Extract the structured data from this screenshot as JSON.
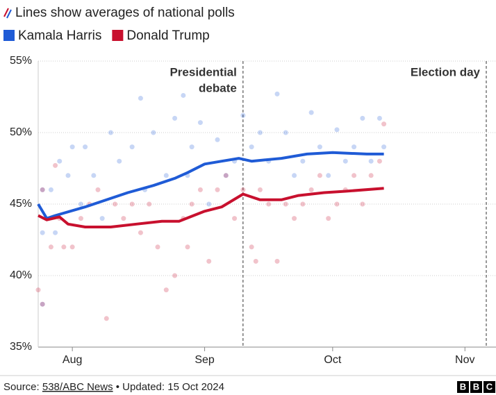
{
  "chart_data": {
    "type": "line",
    "title": "Lines show averages of national polls",
    "xlim": [
      23,
      128
    ],
    "xticks": [
      {
        "value": 31,
        "label": "Aug"
      },
      {
        "value": 62,
        "label": "Sep"
      },
      {
        "value": 92,
        "label": "Oct"
      },
      {
        "value": 123,
        "label": "Nov"
      }
    ],
    "ylim": [
      35,
      55
    ],
    "yticks": [
      {
        "value": 35,
        "label": "35%"
      },
      {
        "value": 40,
        "label": "40%"
      },
      {
        "value": 45,
        "label": "45%"
      },
      {
        "value": 50,
        "label": "50%"
      },
      {
        "value": 55,
        "label": "55%"
      }
    ],
    "grid": true,
    "events": [
      {
        "x": 71,
        "label": [
          "Presidential",
          "debate"
        ]
      },
      {
        "x": 128,
        "label": [
          "Election day"
        ]
      }
    ],
    "series": [
      {
        "name": "Kamala Harris",
        "color": "#1f5bd6",
        "x": [
          23,
          25,
          27,
          34,
          38,
          44,
          50,
          55,
          58,
          62,
          66,
          70,
          73,
          80,
          86,
          92,
          100,
          104
        ],
        "values": [
          45,
          44,
          44.2,
          44.8,
          45.2,
          45.8,
          46.3,
          46.8,
          47.2,
          47.8,
          48,
          48.2,
          48,
          48.2,
          48.5,
          48.6,
          48.5,
          48.5
        ],
        "polls_x": [
          24,
          24,
          24,
          26,
          27,
          28,
          30,
          31,
          33,
          34,
          36,
          38,
          40,
          42,
          45,
          47,
          48,
          50,
          53,
          55,
          57,
          58,
          59,
          61,
          63,
          65,
          67,
          69,
          71,
          73,
          75,
          77,
          79,
          81,
          83,
          85,
          87,
          89,
          91,
          93,
          95,
          97,
          99,
          101,
          103,
          104
        ],
        "polls": [
          46,
          43,
          38,
          46,
          43,
          48,
          47,
          49,
          45,
          49,
          47,
          44,
          50,
          48,
          49,
          52.4,
          46,
          50,
          47,
          51,
          52.6,
          47,
          49,
          50.7,
          45,
          49.5,
          47,
          48,
          51.2,
          49,
          50,
          48,
          52.7,
          50,
          47,
          48,
          51.4,
          49,
          47,
          50.2,
          48,
          49,
          51,
          48,
          51,
          49
        ]
      },
      {
        "name": "Donald Trump",
        "color": "#c8102e",
        "x": [
          23,
          25,
          28,
          30,
          34,
          40,
          46,
          52,
          56,
          62,
          66,
          71,
          75,
          80,
          84,
          90,
          95,
          104
        ],
        "values": [
          44.2,
          43.9,
          44.1,
          43.6,
          43.4,
          43.4,
          43.6,
          43.8,
          43.8,
          44.5,
          44.8,
          45.7,
          45.3,
          45.3,
          45.6,
          45.8,
          45.9,
          46.1
        ],
        "polls_x": [
          23,
          24,
          24,
          26,
          27,
          28,
          29,
          31,
          33,
          35,
          37,
          39,
          41,
          43,
          45,
          47,
          49,
          51,
          53,
          55,
          57,
          58,
          59,
          61,
          63,
          65,
          67,
          69,
          71,
          73,
          74,
          75,
          77,
          79,
          81,
          83,
          85,
          87,
          89,
          91,
          93,
          95,
          97,
          99,
          101,
          103,
          104
        ],
        "polls": [
          39,
          46,
          38,
          42,
          47.7,
          44,
          42,
          42,
          44,
          45,
          46,
          37,
          45,
          44,
          45,
          43,
          45,
          42,
          39,
          40,
          44,
          42,
          45,
          46,
          41,
          46,
          47,
          44,
          46,
          42,
          41,
          46,
          45,
          41,
          45,
          44,
          45,
          46,
          47,
          44,
          45,
          46,
          47,
          45,
          47,
          48,
          50.6
        ]
      }
    ]
  },
  "footer": {
    "source_label": "Source:",
    "source_link": "538/ABC News",
    "updated": "• Updated: 15 Oct 2024",
    "logo": [
      "B",
      "B",
      "C"
    ]
  }
}
